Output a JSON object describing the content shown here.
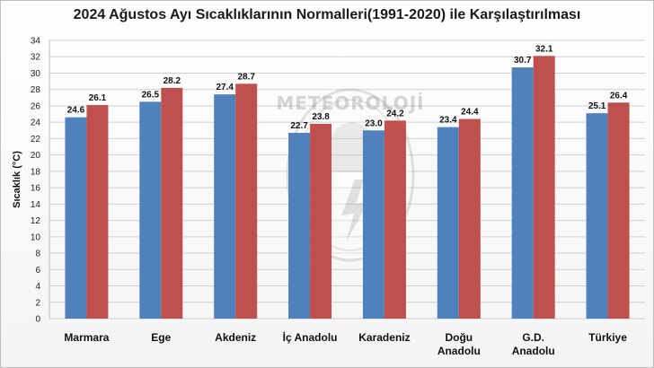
{
  "chart_data": {
    "type": "bar",
    "title": "2024 Ağustos Ayı Sıcaklıklarının Normalleri(1991-2020) ile Karşılaştırılması",
    "ylabel": "Sıcaklık (°C)",
    "xlabel": "",
    "ylim": [
      0,
      34
    ],
    "ytick_step": 2,
    "grid": true,
    "categories": [
      [
        "Marmara"
      ],
      [
        "Ege"
      ],
      [
        "Akdeniz"
      ],
      [
        "İç Anadolu"
      ],
      [
        "Karadeniz"
      ],
      [
        "Doğu",
        "Anadolu"
      ],
      [
        "G.D.",
        "Anadolu"
      ],
      [
        "Türkiye"
      ]
    ],
    "series": [
      {
        "color": "#4f81bd",
        "values": [
          24.6,
          26.5,
          27.4,
          22.7,
          23.0,
          23.4,
          30.7,
          25.1
        ]
      },
      {
        "color": "#c0504d",
        "values": [
          26.1,
          28.2,
          28.7,
          23.8,
          24.2,
          24.4,
          32.1,
          26.4
        ]
      }
    ],
    "watermark": "METEOROLOJİ"
  }
}
